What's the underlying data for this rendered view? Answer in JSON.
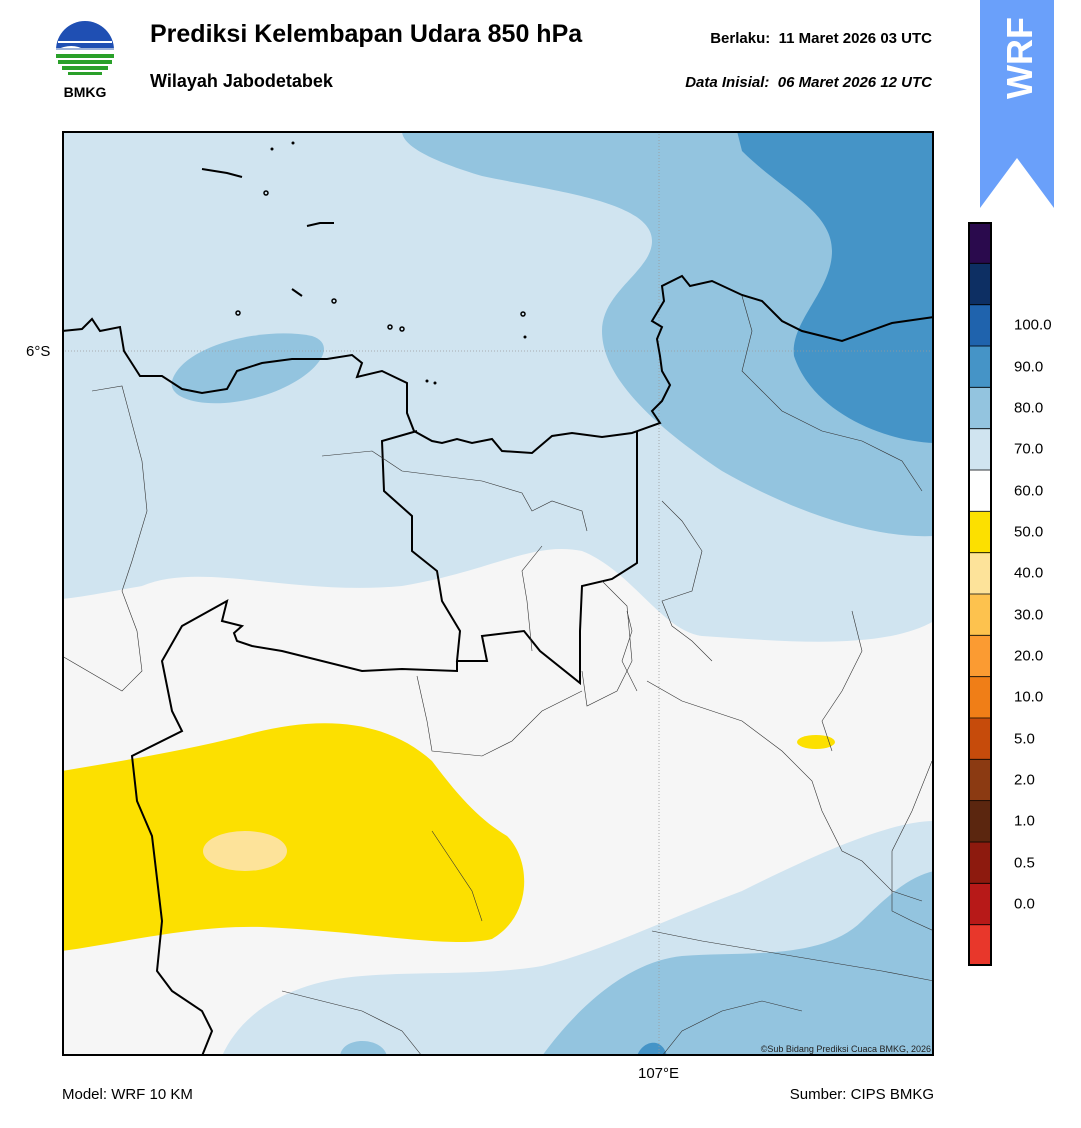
{
  "header": {
    "title": "Prediksi Kelembapan Udara 850 hPa",
    "subtitle": "Wilayah Jabodetabek",
    "valid_label": "Berlaku:",
    "valid_value": "11 Maret 2026 03 UTC",
    "init_label": "Data Inisial:",
    "init_value": "06 Maret 2026 12 UTC"
  },
  "logo": {
    "text": "BMKG",
    "icon": "bmkg-logo-icon"
  },
  "badge": {
    "text": "WRF",
    "color": "#6aa0fa"
  },
  "map": {
    "lat_label": "6°S",
    "lon_label": "107°E",
    "credit": "©Sub Bidang Prediksi Cuaca BMKG, 2026"
  },
  "footer": {
    "model": "Model: WRF 10 KM",
    "source": "Sumber: CIPS BMKG"
  },
  "colorbar": {
    "colors": [
      "#e8372b",
      "#b71918",
      "#8d1a0e",
      "#5b260f",
      "#8b3a12",
      "#c64b0b",
      "#f07e17",
      "#fb9b32",
      "#fdc24e",
      "#fde39a",
      "#fce000",
      "#ffffff",
      "#d0e4f0",
      "#93c4df",
      "#4594c7",
      "#1f63ad",
      "#0d2f63",
      "#2a0a4d"
    ],
    "labels": [
      "0.0",
      "0.5",
      "1.0",
      "2.0",
      "5.0",
      "10.0",
      "20.0",
      "30.0",
      "40.0",
      "50.0",
      "60.0",
      "70.0",
      "80.0",
      "90.0",
      "100.0"
    ]
  }
}
